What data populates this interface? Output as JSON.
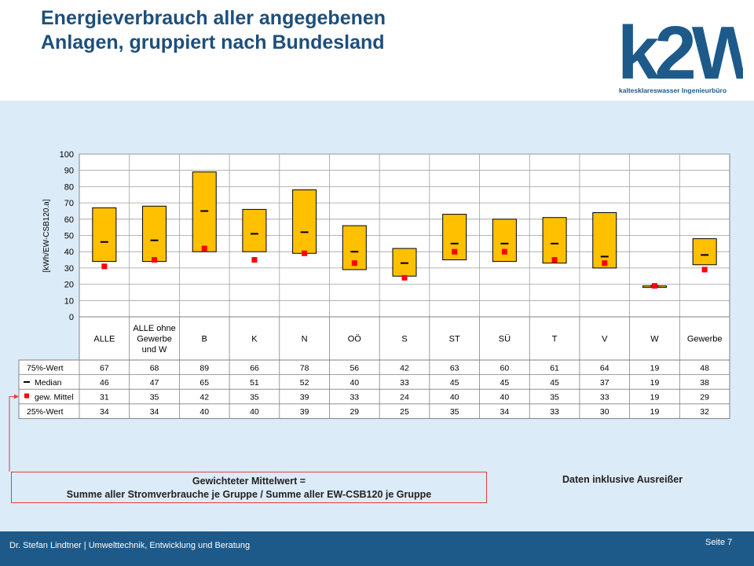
{
  "header": {
    "title_line1": "Energieverbrauch aller angegebenen",
    "title_line2": "Anlagen, gruppiert nach Bundesland",
    "logo_text": "k2W",
    "logo_tagline": "kalteskIareswasser Ingenieurbüro",
    "brand_color": "#1d5a8a"
  },
  "footer": {
    "left": "Dr. Stefan Lindtner | Umwelttechnik, Entwicklung und Beratung",
    "right": "Seite 7"
  },
  "notes": {
    "box_line1": "Gewichteter Mittelwert =",
    "box_line2": "Summe aller Stromverbrauche je Gruppe / Summe aller EW-CSB120 je Gruppe",
    "right": "Daten inklusive Ausreißer"
  },
  "chart_data": {
    "type": "box",
    "ylabel": "[kWh/EW-CSB120.a]",
    "ylim": [
      0,
      100
    ],
    "yticks": [
      0,
      10,
      20,
      30,
      40,
      50,
      60,
      70,
      80,
      90,
      100
    ],
    "grid": true,
    "categories": [
      [
        "ALLE"
      ],
      [
        "ALLE ohne",
        "Gewerbe",
        "und W"
      ],
      [
        "B"
      ],
      [
        "K"
      ],
      [
        "N"
      ],
      [
        "OÖ"
      ],
      [
        "S"
      ],
      [
        "ST"
      ],
      [
        "SÜ"
      ],
      [
        "T"
      ],
      [
        "V"
      ],
      [
        "W"
      ],
      [
        "Gewerbe"
      ]
    ],
    "series": [
      {
        "name": "75%-Wert",
        "values": [
          67,
          68,
          89,
          66,
          78,
          56,
          42,
          63,
          60,
          61,
          64,
          19,
          48
        ]
      },
      {
        "name": "Median",
        "values": [
          46,
          47,
          65,
          51,
          52,
          40,
          33,
          45,
          45,
          45,
          37,
          19,
          38
        ]
      },
      {
        "name": "gew. Mittel",
        "values": [
          31,
          35,
          42,
          35,
          39,
          33,
          24,
          40,
          40,
          35,
          33,
          19,
          29
        ]
      },
      {
        "name": "25%-Wert",
        "values": [
          34,
          34,
          40,
          40,
          39,
          29,
          25,
          35,
          34,
          33,
          30,
          19,
          32
        ]
      }
    ],
    "colors": {
      "box_fill": "#ffc000",
      "box_stroke": "#000000",
      "median": "#000000",
      "mean": "#ff0000",
      "arrow": "#e04040"
    }
  }
}
